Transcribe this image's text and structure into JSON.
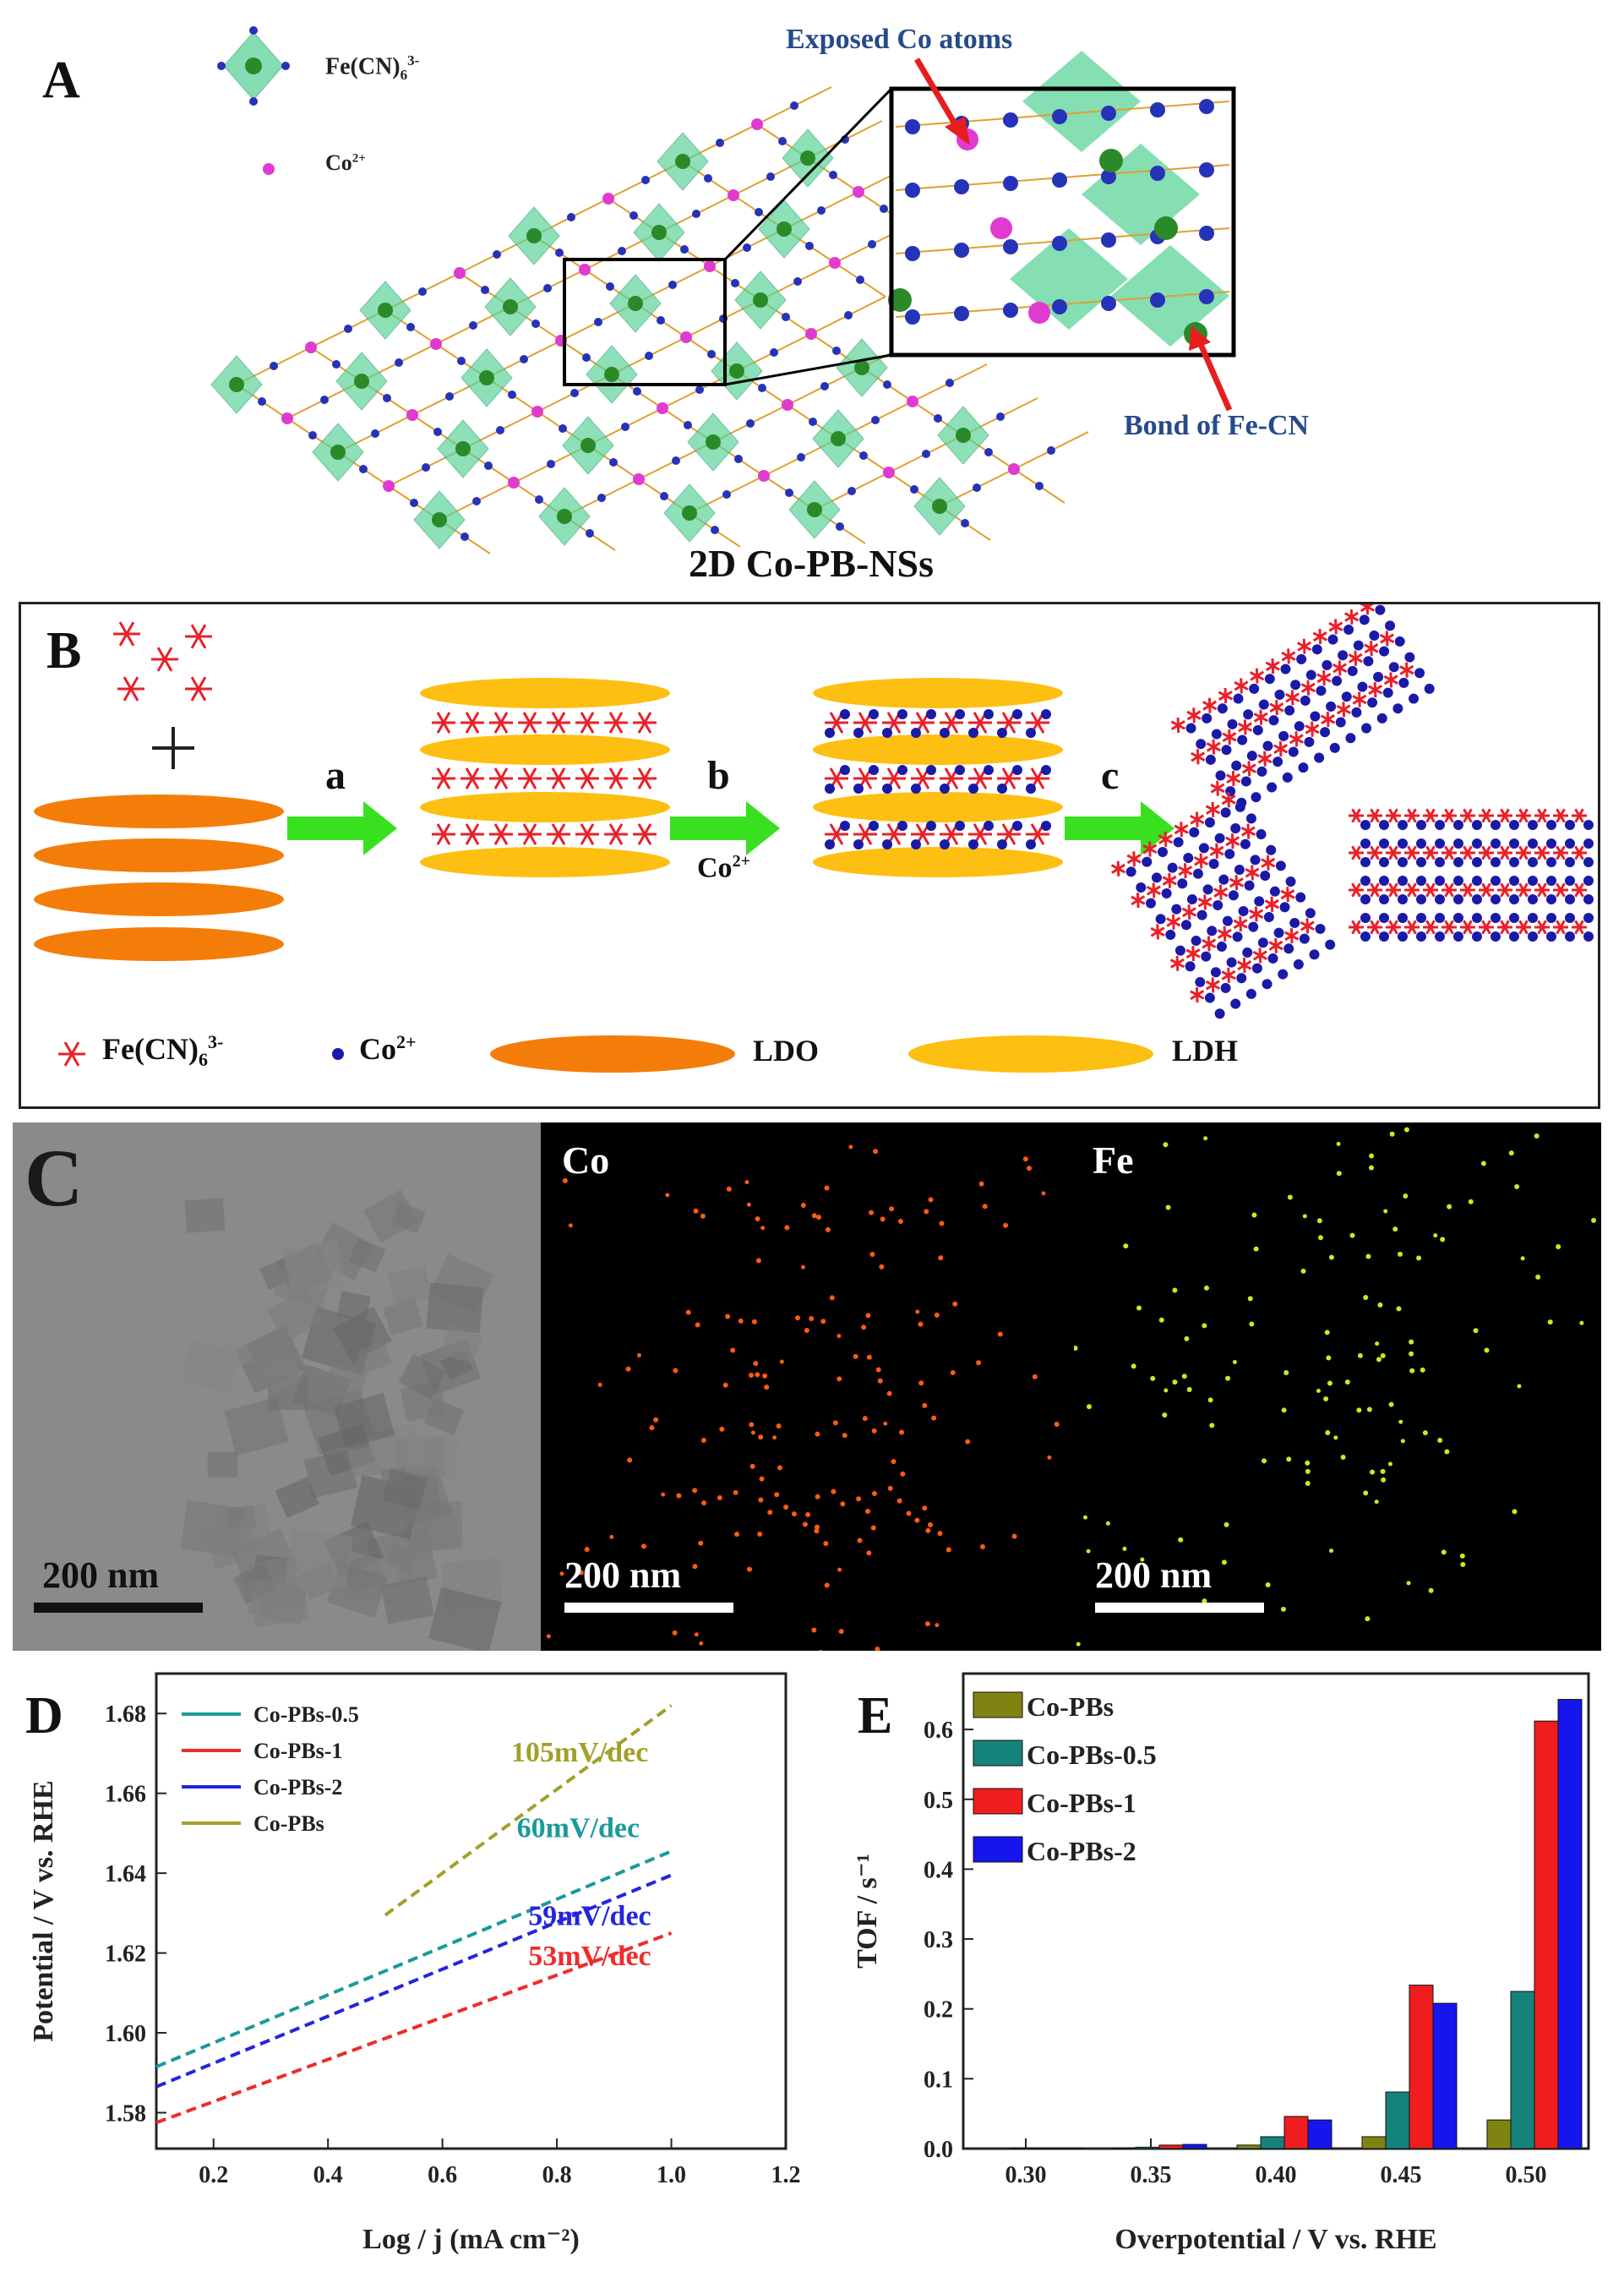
{
  "panel_a": {
    "letter": "A",
    "legend": {
      "fe_label": "Fe(CN)",
      "fe_sub": "6",
      "fe_sup": "3-",
      "co_label": "Co",
      "co_sup": "2+"
    },
    "callout_top": "Exposed Co atoms",
    "callout_bottom": "Bond of Fe-CN",
    "caption": "2D Co-PB-NSs"
  },
  "panel_b": {
    "letter": "B",
    "step_labels": [
      "a",
      "b",
      "c"
    ],
    "reagent": "Co",
    "reagent_sup": "2+",
    "legend": [
      {
        "label": "Fe(CN)",
        "sub": "6",
        "sup": "3-"
      },
      {
        "label": "Co",
        "sup": "2+"
      },
      {
        "label": "LDO"
      },
      {
        "label": "LDH"
      }
    ],
    "colors": {
      "ldo": "#f47d0a",
      "ldh": "#fdbf12",
      "fe": "#e8202a",
      "co": "#1a1aa8",
      "arrow": "#38e020"
    }
  },
  "panel_c": {
    "letter": "C",
    "tiles": [
      {
        "label": "",
        "scale": "200 nm"
      },
      {
        "label": "Co",
        "scale": "200 nm"
      },
      {
        "label": "Fe",
        "scale": "200 nm"
      }
    ],
    "colors": {
      "co_dot": "#ff5a14",
      "fe_dot": "#d2e61e"
    }
  },
  "panel_d": {
    "letter": "D",
    "chart_data": {
      "type": "line",
      "xlabel": "Log / j (mA cm⁻²)",
      "ylabel": "Potential / V vs. RHE",
      "xlim": [
        0.1,
        1.2
      ],
      "ylim": [
        1.571,
        1.69
      ],
      "xticks": [
        "0.2",
        "0.4",
        "0.6",
        "0.8",
        "1.0",
        "1.2"
      ],
      "yticks": [
        "1.58",
        "1.60",
        "1.62",
        "1.64",
        "1.66",
        "1.68"
      ],
      "series": [
        {
          "name": "Co-PBs-0.5",
          "color": "#1b9a9a",
          "x": [
            0.1,
            1.0
          ],
          "y": [
            1.5915,
            1.6455
          ],
          "annotation": "60mV/dec"
        },
        {
          "name": "Co-PBs-1",
          "color": "#ef2b2b",
          "x": [
            0.1,
            1.0
          ],
          "y": [
            1.5775,
            1.625
          ],
          "annotation": "53mV/dec"
        },
        {
          "name": "Co-PBs-2",
          "color": "#2424e0",
          "x": [
            0.1,
            1.0
          ],
          "y": [
            1.5865,
            1.6395
          ],
          "annotation": "59mV/dec"
        },
        {
          "name": "Co-PBs",
          "color": "#a3a02a",
          "x": [
            0.5,
            1.0
          ],
          "y": [
            1.6295,
            1.682
          ],
          "annotation": "105mV/dec"
        }
      ]
    }
  },
  "panel_e": {
    "letter": "E",
    "chart_data": {
      "type": "bar",
      "xlabel": "Overpotential / V vs. RHE",
      "ylabel": "TOF / s⁻¹",
      "categories": [
        "0.30",
        "0.35",
        "0.40",
        "0.45",
        "0.50"
      ],
      "ylim": [
        0,
        0.68
      ],
      "yticks": [
        "0.0",
        "0.1",
        "0.2",
        "0.3",
        "0.4",
        "0.5",
        "0.6"
      ],
      "series": [
        {
          "name": "Co-PBs",
          "color": "#7f8311",
          "values": [
            0.0,
            0.001,
            0.005,
            0.017,
            0.041
          ]
        },
        {
          "name": "Co-PBs-0.5",
          "color": "#15837c",
          "values": [
            0.001,
            0.002,
            0.017,
            0.081,
            0.225
          ]
        },
        {
          "name": "Co-PBs-1",
          "color": "#ef1d1d",
          "values": [
            0.001,
            0.005,
            0.046,
            0.234,
            0.612
          ]
        },
        {
          "name": "Co-PBs-2",
          "color": "#1515ee",
          "values": [
            0.001,
            0.006,
            0.041,
            0.208,
            0.643
          ]
        }
      ]
    }
  }
}
